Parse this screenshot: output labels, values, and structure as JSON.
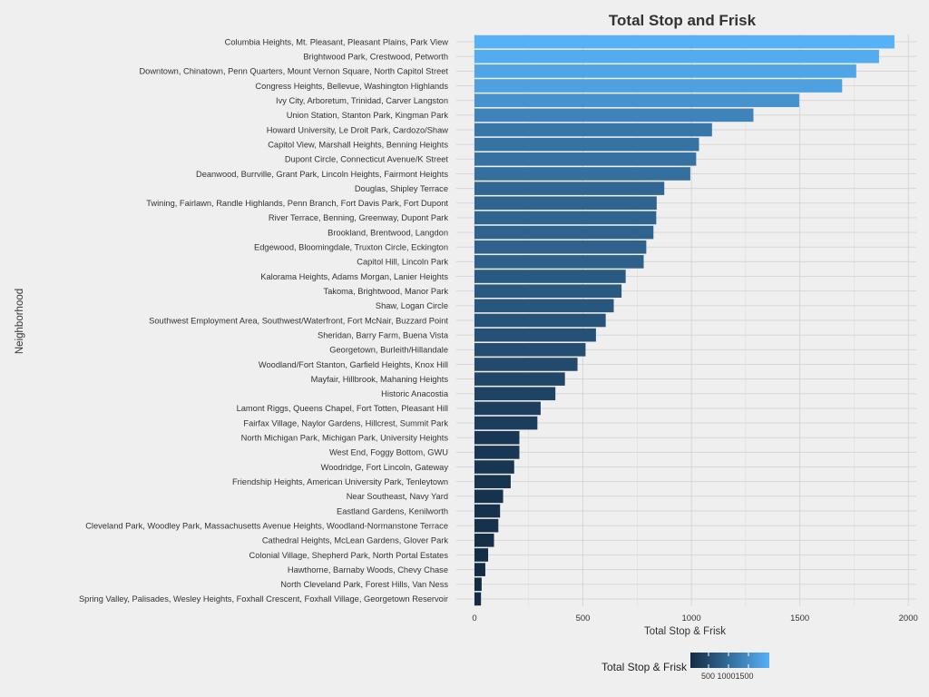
{
  "chart_data": {
    "type": "bar",
    "orientation": "horizontal",
    "title": "Total Stop and Frisk",
    "xlabel": "Total Stop & Frisk",
    "ylabel": "Neighborhood",
    "xlim": [
      0,
      2000
    ],
    "xticks": [
      0,
      500,
      1000,
      1500,
      2000
    ],
    "grid": true,
    "legend": {
      "title": "Total Stop & Frisk",
      "placement": "bottom",
      "ticks": [
        "500",
        "1000",
        "1500"
      ],
      "tick_label": "500 10001500",
      "color_low": "#132b43",
      "color_high": "#56b1f7"
    },
    "categories": [
      "Columbia Heights, Mt. Pleasant, Pleasant Plains, Park View",
      "Brightwood Park, Crestwood, Petworth",
      "Downtown, Chinatown, Penn Quarters, Mount Vernon Square, North Capitol Street",
      "Congress Heights, Bellevue, Washington Highlands",
      "Ivy City, Arboretum, Trinidad, Carver Langston",
      "Union Station, Stanton Park, Kingman Park",
      "Howard University, Le Droit Park, Cardozo/Shaw",
      "Capitol View, Marshall Heights, Benning Heights",
      "Dupont Circle, Connecticut Avenue/K Street",
      "Deanwood, Burrville, Grant Park, Lincoln Heights, Fairmont Heights",
      "Douglas, Shipley Terrace",
      "Twining, Fairlawn, Randle Highlands, Penn Branch, Fort Davis Park, Fort Dupont",
      "River Terrace, Benning, Greenway, Dupont Park",
      "Brookland, Brentwood, Langdon",
      "Edgewood, Bloomingdale, Truxton Circle, Eckington",
      "Capitol Hill, Lincoln Park",
      "Kalorama Heights, Adams Morgan, Lanier Heights",
      "Takoma, Brightwood, Manor Park",
      "Shaw, Logan Circle",
      "Southwest Employment Area, Southwest/Waterfront, Fort McNair, Buzzard Point",
      "Sheridan, Barry Farm, Buena Vista",
      "Georgetown, Burleith/Hillandale",
      "Woodland/Fort Stanton, Garfield Heights, Knox Hill",
      "Mayfair, Hillbrook, Mahaning Heights",
      "Historic Anacostia",
      "Lamont Riggs, Queens Chapel, Fort Totten, Pleasant Hill",
      "Fairfax Village, Naylor Gardens, Hillcrest, Summit Park",
      "North Michigan Park, Michigan Park, University Heights",
      "West End, Foggy Bottom, GWU",
      "Woodridge, Fort Lincoln, Gateway",
      "Friendship Heights, American University Park, Tenleytown",
      "Near Southeast, Navy Yard",
      "Eastland Gardens, Kenilworth",
      "Cleveland Park, Woodley Park, Massachusetts Avenue Heights, Woodland-Normanstone Terrace",
      "Cathedral Heights, McLean Gardens, Glover Park",
      "Colonial Village, Shepherd Park, North Portal Estates",
      "Hawthorne, Barnaby Woods, Chevy Chase",
      "North Cleveland Park, Forest Hills, Van Ness",
      "Spring Valley, Palisades, Wesley Heights, Foxhall Crescent, Foxhall Village, Georgetown Reservoir"
    ],
    "values": [
      1936,
      1865,
      1760,
      1695,
      1497,
      1286,
      1095,
      1035,
      1022,
      995,
      875,
      840,
      838,
      825,
      792,
      780,
      697,
      678,
      642,
      605,
      560,
      512,
      475,
      417,
      373,
      305,
      290,
      207,
      207,
      183,
      167,
      132,
      118,
      110,
      90,
      63,
      50,
      33,
      30
    ]
  }
}
